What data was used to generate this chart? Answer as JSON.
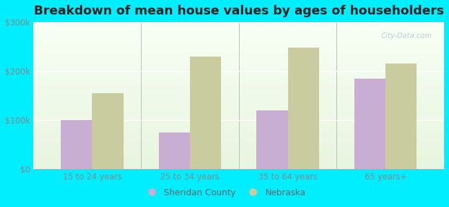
{
  "title": "Breakdown of mean house values by ages of householders",
  "categories": [
    "15 to 24 years",
    "25 to 34 years",
    "35 to 64 years",
    "65 years+"
  ],
  "sheridan_values": [
    100000,
    75000,
    120000,
    185000
  ],
  "nebraska_values": [
    155000,
    230000,
    248000,
    215000
  ],
  "sheridan_color": "#c9aed4",
  "nebraska_color": "#c8cc9f",
  "background_color": "#00eeff",
  "ylim": [
    0,
    300000
  ],
  "yticks": [
    0,
    100000,
    200000,
    300000
  ],
  "ytick_labels": [
    "$0",
    "$100k",
    "$200k",
    "$300k"
  ],
  "title_fontsize": 13,
  "legend_sheridan": "Sheridan County",
  "legend_nebraska": "Nebraska",
  "bar_width": 0.32,
  "watermark": "City-Data.com"
}
